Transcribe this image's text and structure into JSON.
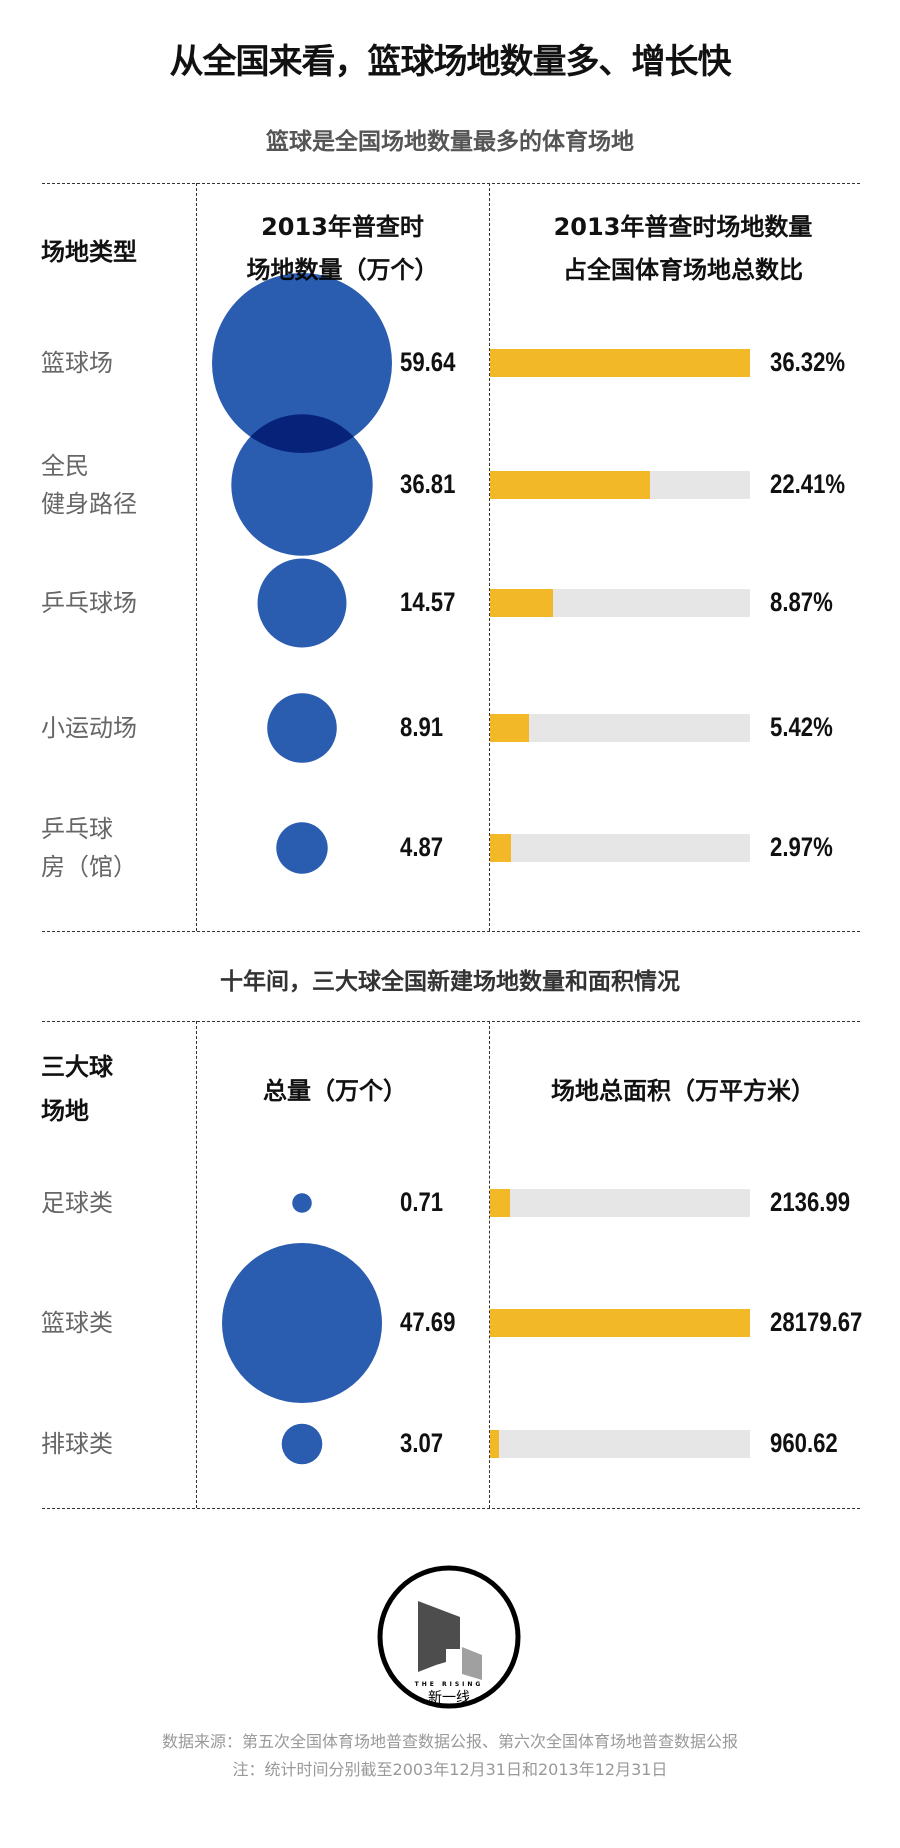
{
  "title": "从全国来看，篮球场地数量多、增长快",
  "chart_data": [
    {
      "type": "bubble-bar-table",
      "title": "篮球是全国场地数量最多的体育场地",
      "column_headers": [
        "场地类型",
        "2013年普查时",
        "场地数量（万个）",
        "2013年普查时场地数量",
        "占全国体育场地总数比"
      ],
      "rows": [
        {
          "label_lines": [
            "篮球场"
          ],
          "count": 59.64,
          "count_label": "59.64",
          "share": 36.32,
          "share_label": "36.32%"
        },
        {
          "label_lines": [
            "全民",
            "健身路径"
          ],
          "count": 36.81,
          "count_label": "36.81",
          "share": 22.41,
          "share_label": "22.41%"
        },
        {
          "label_lines": [
            "乒乓球场"
          ],
          "count": 14.57,
          "count_label": "14.57",
          "share": 8.87,
          "share_label": "8.87%"
        },
        {
          "label_lines": [
            "小运动场"
          ],
          "count": 8.91,
          "count_label": "8.91",
          "share": 5.42,
          "share_label": "5.42%"
        },
        {
          "label_lines": [
            "乒乓球",
            "房（馆）"
          ],
          "count": 4.87,
          "count_label": "4.87",
          "share": 2.97,
          "share_label": "2.97%"
        }
      ]
    },
    {
      "type": "bubble-bar-table",
      "title": "十年间，三大球全国新建场地数量和面积情况",
      "column_headers": [
        "三大球",
        "场地",
        "总量（万个）",
        "场地总面积（万平方米）"
      ],
      "rows": [
        {
          "label_lines": [
            "足球类"
          ],
          "count": 0.71,
          "count_label": "0.71",
          "area": 2136.99,
          "area_label": "2136.99"
        },
        {
          "label_lines": [
            "篮球类"
          ],
          "count": 47.69,
          "count_label": "47.69",
          "area": 28179.67,
          "area_label": "28179.67"
        },
        {
          "label_lines": [
            "排球类"
          ],
          "count": 3.07,
          "count_label": "3.07",
          "area": 960.62,
          "area_label": "960.62"
        }
      ]
    }
  ],
  "colors": {
    "bubble": "#2a5cb0",
    "bar": "#f2b827",
    "bar_track": "#e6e6e6"
  },
  "logo": {
    "tagline": "THE RISING",
    "name": "新一线"
  },
  "footer": {
    "source": "数据来源：第五次全国体育场地普查数据公报、第六次全国体育场地普查数据公报",
    "note": "注：统计时间分别截至2003年12月31日和2013年12月31日"
  }
}
